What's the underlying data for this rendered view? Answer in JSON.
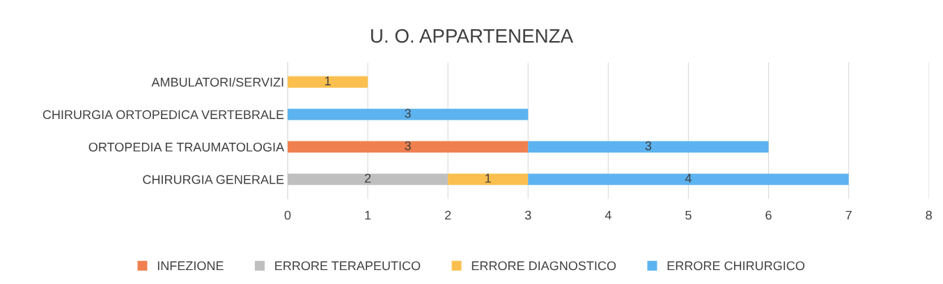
{
  "chart_data": {
    "type": "bar",
    "title": "U. O. APPARTENENZA",
    "orientation": "horizontal",
    "stacked": true,
    "categories": [
      "AMBULATORI/SERVIZI",
      "CHIRURGIA ORTOPEDICA VERTEBRALE",
      "ORTOPEDIA E TRAUMATOLOGIA",
      "CHIRURGIA GENERALE"
    ],
    "series": [
      {
        "name": "INFEZIONE",
        "color": "#f0804f",
        "values": [
          null,
          null,
          3,
          null
        ]
      },
      {
        "name": "ERRORE TERAPEUTICO",
        "color": "#bfbfbf",
        "values": [
          null,
          null,
          null,
          2
        ]
      },
      {
        "name": "ERRORE DIAGNOSTICO",
        "color": "#fbbf4f",
        "values": [
          1,
          null,
          null,
          1
        ]
      },
      {
        "name": "ERRORE CHIRURGICO",
        "color": "#5cb3f0",
        "values": [
          null,
          3,
          3,
          4
        ]
      }
    ],
    "xlim": [
      0,
      8
    ],
    "xticks": [
      0,
      1,
      2,
      3,
      4,
      5,
      6,
      7,
      8
    ],
    "grid": "x",
    "legend": "bottom",
    "data_labels": true
  }
}
